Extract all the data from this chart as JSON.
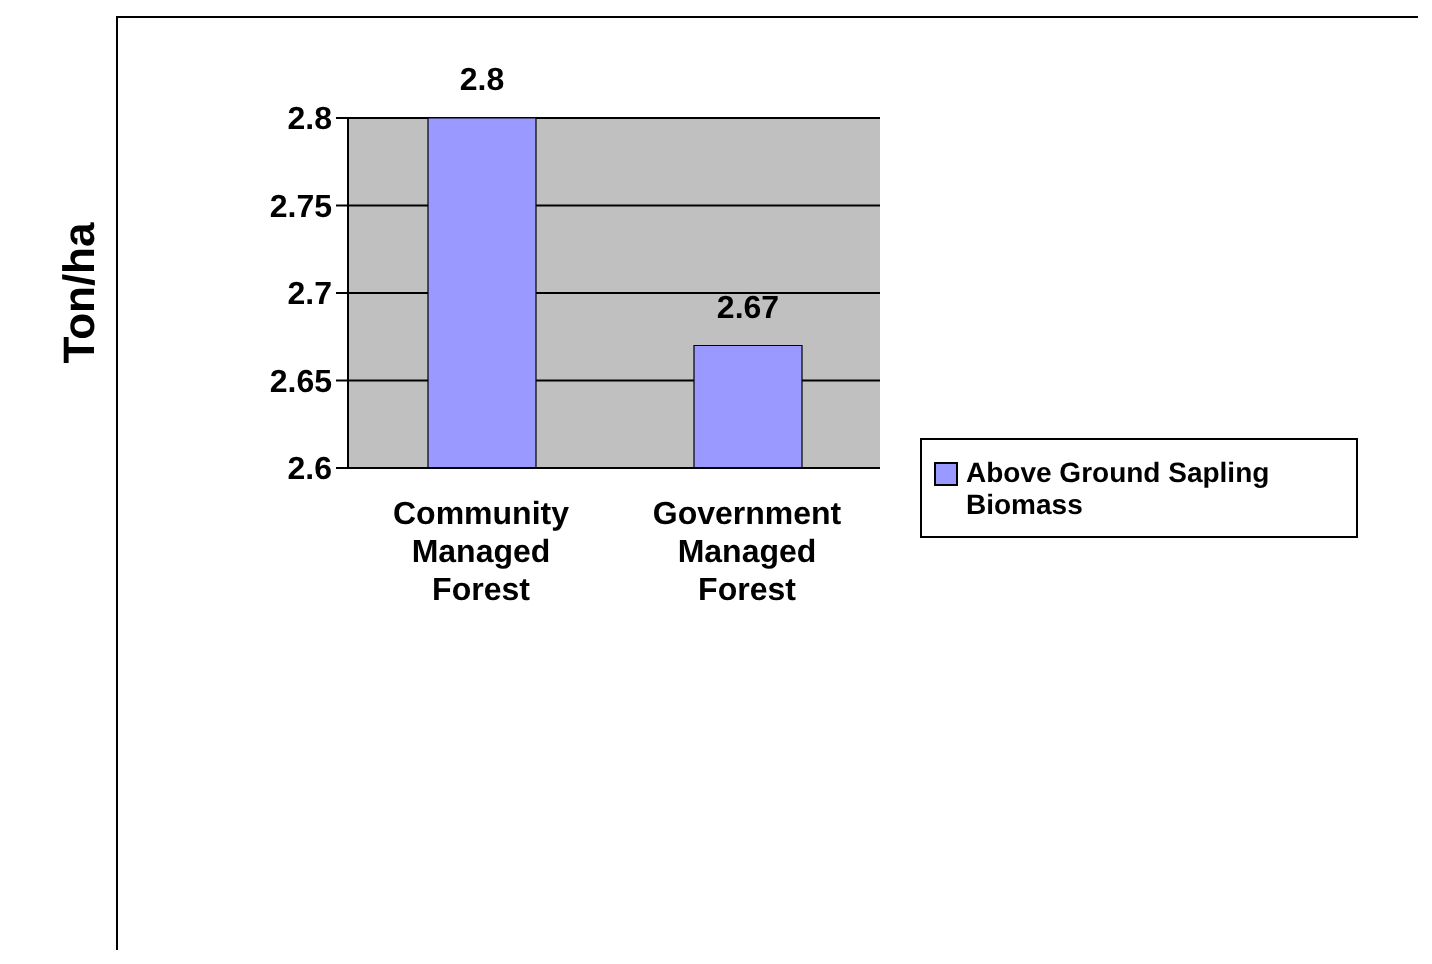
{
  "chart_data": {
    "type": "bar",
    "ylabel": "Ton/ha",
    "categories": [
      "Community Managed Forest",
      "Government Managed Forest"
    ],
    "series": [
      {
        "name": "Above Ground Sapling Biomass",
        "color": "#9999ff",
        "values": [
          2.8,
          2.67
        ]
      }
    ],
    "ylim": [
      2.6,
      2.8
    ],
    "yticks": [
      2.6,
      2.65,
      2.7,
      2.75,
      2.8
    ],
    "grid": "y",
    "legend": "right",
    "data_labels": true
  }
}
